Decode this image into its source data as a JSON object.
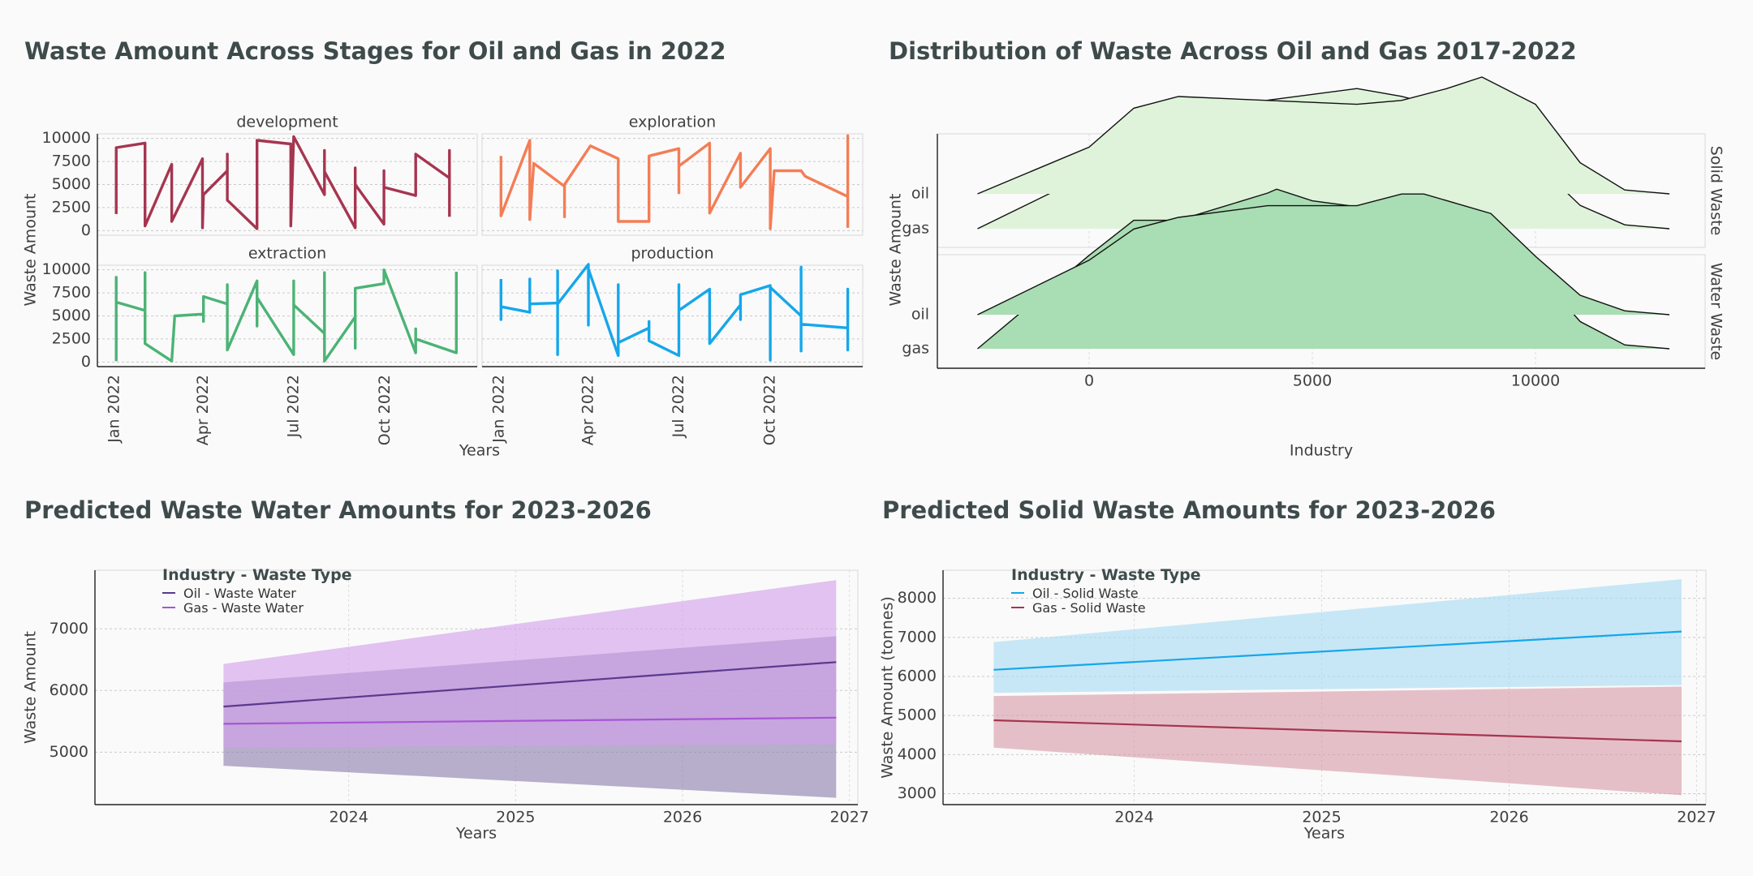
{
  "titles": {
    "p1": "Waste Amount Across Stages for Oil and Gas in 2022",
    "p2": "Distribution of Waste Across Oil and Gas 2017-2022",
    "p3": "Predicted Waste Water Amounts for 2023-2026",
    "p4": "Predicted Solid Waste Amounts for 2023-2026"
  },
  "colors": {
    "development": "#a63550",
    "exploration": "#f47d56",
    "extraction": "#4cb375",
    "production": "#15a7ea",
    "solid_fill": "#dff3da",
    "water_fill": "#a9ddb3",
    "oil_ww": "#5a3a8e",
    "gas_ww": "#a855d6",
    "oil_ww_band": "#8c80ad",
    "gas_ww_band": "#d2a0ea",
    "oil_sw": "#15a7ea",
    "gas_sw": "#a63550",
    "oil_sw_band": "#a8dcf4",
    "gas_sw_band": "#d99ba8"
  },
  "legend3": {
    "title": "Industry - Waste Type",
    "items": [
      "Oil - Waste Water",
      "Gas - Waste Water"
    ]
  },
  "legend4": {
    "title": "Industry - Waste Type",
    "items": [
      "Oil - Solid Waste",
      "Gas - Solid Waste"
    ]
  },
  "chart_data": [
    {
      "type": "line",
      "title": "Waste Amount Across Stages for Oil and Gas in 2022",
      "xlabel": "Years",
      "ylabel": "Waste Amount",
      "xticks": [
        "Jan 2022",
        "Apr 2022",
        "Jul 2022",
        "Oct 2022"
      ],
      "yticks": [
        0,
        2500,
        5000,
        7500,
        10000
      ],
      "xlim": [
        "2021-12-15",
        "2023-01-02"
      ],
      "ylim": [
        -500,
        10500
      ],
      "facets": [
        {
          "name": "development",
          "points": [
            [
              "2022-01-03",
              1800
            ],
            [
              "2022-01-03",
              9000
            ],
            [
              "2022-02-01",
              9500
            ],
            [
              "2022-02-01",
              500
            ],
            [
              "2022-02-28",
              7200
            ],
            [
              "2022-02-28",
              1000
            ],
            [
              "2022-03-31",
              7800
            ],
            [
              "2022-03-31",
              300
            ],
            [
              "2022-04-01",
              3900
            ],
            [
              "2022-04-25",
              6500
            ],
            [
              "2022-04-25",
              8300
            ],
            [
              "2022-04-25",
              3300
            ],
            [
              "2022-05-25",
              200
            ],
            [
              "2022-05-25",
              9800
            ],
            [
              "2022-06-28",
              9400
            ],
            [
              "2022-06-28",
              500
            ],
            [
              "2022-07-01",
              10200
            ],
            [
              "2022-08-01",
              3900
            ],
            [
              "2022-08-01",
              8700
            ],
            [
              "2022-08-01",
              6400
            ],
            [
              "2022-09-01",
              300
            ],
            [
              "2022-09-01",
              6800
            ],
            [
              "2022-09-01",
              5000
            ],
            [
              "2022-09-30",
              700
            ],
            [
              "2022-09-30",
              6500
            ],
            [
              "2022-09-30",
              4700
            ],
            [
              "2022-11-01",
              3800
            ],
            [
              "2022-11-01",
              8300
            ],
            [
              "2022-12-05",
              5700
            ],
            [
              "2022-12-05",
              8700
            ],
            [
              "2022-12-05",
              1500
            ]
          ]
        },
        {
          "name": "exploration",
          "points": [
            [
              "2022-01-03",
              8100
            ],
            [
              "2022-01-03",
              1600
            ],
            [
              "2022-02-01",
              9800
            ],
            [
              "2022-02-01",
              8500
            ],
            [
              "2022-02-01",
              2400
            ],
            [
              "2022-02-01",
              1200
            ],
            [
              "2022-02-05",
              7300
            ],
            [
              "2022-03-08",
              4800
            ],
            [
              "2022-03-08",
              1500
            ],
            [
              "2022-03-08",
              5000
            ],
            [
              "2022-04-03",
              9200
            ],
            [
              "2022-05-01",
              7800
            ],
            [
              "2022-05-01",
              1000
            ],
            [
              "2022-06-01",
              1000
            ],
            [
              "2022-06-01",
              8100
            ],
            [
              "2022-07-01",
              8900
            ],
            [
              "2022-07-01",
              4100
            ],
            [
              "2022-07-01",
              7000
            ],
            [
              "2022-08-01",
              9500
            ],
            [
              "2022-08-01",
              1900
            ],
            [
              "2022-09-01",
              8400
            ],
            [
              "2022-09-01",
              4700
            ],
            [
              "2022-10-01",
              8900
            ],
            [
              "2022-10-01",
              200
            ],
            [
              "2022-10-05",
              6500
            ],
            [
              "2022-11-01",
              6500
            ],
            [
              "2022-11-05",
              5900
            ],
            [
              "2022-12-18",
              3700
            ],
            [
              "2022-12-18",
              10300
            ],
            [
              "2022-12-18",
              300
            ]
          ]
        },
        {
          "name": "extraction",
          "points": [
            [
              "2022-01-03",
              100
            ],
            [
              "2022-01-03",
              9200
            ],
            [
              "2022-01-03",
              6500
            ],
            [
              "2022-02-01",
              5600
            ],
            [
              "2022-02-01",
              9700
            ],
            [
              "2022-02-01",
              2000
            ],
            [
              "2022-02-28",
              100
            ],
            [
              "2022-03-03",
              5000
            ],
            [
              "2022-04-01",
              5200
            ],
            [
              "2022-04-01",
              4400
            ],
            [
              "2022-04-01",
              7100
            ],
            [
              "2022-04-25",
              6300
            ],
            [
              "2022-04-25",
              8400
            ],
            [
              "2022-04-25",
              1300
            ],
            [
              "2022-05-25",
              8800
            ],
            [
              "2022-05-25",
              3900
            ],
            [
              "2022-05-25",
              7000
            ],
            [
              "2022-07-01",
              800
            ],
            [
              "2022-07-01",
              8800
            ],
            [
              "2022-07-01",
              6200
            ],
            [
              "2022-08-01",
              3100
            ],
            [
              "2022-08-01",
              9700
            ],
            [
              "2022-08-01",
              100
            ],
            [
              "2022-09-01",
              4900
            ],
            [
              "2022-09-01",
              1500
            ],
            [
              "2022-09-01",
              8000
            ],
            [
              "2022-09-30",
              8500
            ],
            [
              "2022-09-30",
              9500
            ],
            [
              "2022-09-30",
              10000
            ],
            [
              "2022-11-01",
              1000
            ],
            [
              "2022-11-01",
              3600
            ],
            [
              "2022-11-01",
              2500
            ],
            [
              "2022-12-12",
              1000
            ],
            [
              "2022-12-12",
              9800
            ]
          ]
        },
        {
          "name": "production",
          "points": [
            [
              "2022-01-03",
              9000
            ],
            [
              "2022-01-03",
              4600
            ],
            [
              "2022-01-03",
              6000
            ],
            [
              "2022-02-01",
              5400
            ],
            [
              "2022-02-01",
              9000
            ],
            [
              "2022-02-01",
              6300
            ],
            [
              "2022-03-01",
              6400
            ],
            [
              "2022-03-01",
              9900
            ],
            [
              "2022-03-01",
              800
            ],
            [
              "2022-03-01",
              6300
            ],
            [
              "2022-04-01",
              10600
            ],
            [
              "2022-04-01",
              4000
            ],
            [
              "2022-04-01",
              10100
            ],
            [
              "2022-05-01",
              700
            ],
            [
              "2022-05-01",
              8400
            ],
            [
              "2022-05-01",
              2100
            ],
            [
              "2022-06-01",
              3700
            ],
            [
              "2022-06-01",
              4400
            ],
            [
              "2022-06-01",
              2300
            ],
            [
              "2022-07-01",
              700
            ],
            [
              "2022-07-01",
              8400
            ],
            [
              "2022-07-01",
              5600
            ],
            [
              "2022-08-01",
              7900
            ],
            [
              "2022-08-01",
              4000
            ],
            [
              "2022-08-01",
              2000
            ],
            [
              "2022-09-01",
              6200
            ],
            [
              "2022-09-01",
              4600
            ],
            [
              "2022-09-01",
              7300
            ],
            [
              "2022-10-01",
              8300
            ],
            [
              "2022-10-01",
              200
            ],
            [
              "2022-10-01",
              8100
            ],
            [
              "2022-11-01",
              5000
            ],
            [
              "2022-11-01",
              10300
            ],
            [
              "2022-11-01",
              1200
            ],
            [
              "2022-11-01",
              4100
            ],
            [
              "2022-12-18",
              3700
            ],
            [
              "2022-12-18",
              1300
            ],
            [
              "2022-12-18",
              7900
            ],
            [
              "2022-12-18",
              6300
            ]
          ]
        }
      ]
    },
    {
      "type": "area",
      "title": "Distribution of Waste Across Oil and Gas 2017-2022",
      "xlabel": "Industry",
      "ylabel": "Waste Amount",
      "xticks": [
        0,
        5000,
        10000
      ],
      "xlim": [
        -3400,
        13800
      ],
      "facets": [
        {
          "name": "Solid Waste",
          "series": [
            {
              "name": "oil",
              "x": [
                -2500,
                0,
                1000,
                2000,
                4000,
                6000,
                7000,
                8000,
                8800,
                10000,
                11000,
                12000,
                13000
              ],
              "density": [
                0,
                0.12,
                0.22,
                0.25,
                0.24,
                0.23,
                0.24,
                0.27,
                0.3,
                0.23,
                0.08,
                0.01,
                0
              ]
            },
            {
              "name": "gas",
              "x": [
                -2500,
                0,
                1000,
                2000,
                4000,
                6000,
                7000,
                8000,
                9000,
                10000,
                11000,
                12000,
                13000
              ],
              "density": [
                0,
                0.14,
                0.28,
                0.31,
                0.33,
                0.36,
                0.34,
                0.31,
                0.28,
                0.17,
                0.06,
                0.01,
                0
              ]
            }
          ]
        },
        {
          "name": "Water Waste",
          "series": [
            {
              "name": "oil",
              "x": [
                -2500,
                0,
                1000,
                2000,
                4000,
                5000,
                6000,
                7000,
                7500,
                9000,
                10000,
                11000,
                12000,
                13000
              ],
              "density": [
                0,
                0.14,
                0.22,
                0.25,
                0.28,
                0.28,
                0.28,
                0.31,
                0.31,
                0.26,
                0.15,
                0.05,
                0.01,
                0
              ]
            },
            {
              "name": "gas",
              "x": [
                -2500,
                0,
                1000,
                2000,
                4000,
                4200,
                5000,
                7000,
                8000,
                9000,
                10000,
                11000,
                12000,
                13000
              ],
              "density": [
                0,
                0.24,
                0.33,
                0.33,
                0.4,
                0.41,
                0.38,
                0.35,
                0.34,
                0.29,
                0.2,
                0.07,
                0.01,
                0
              ]
            }
          ]
        }
      ]
    },
    {
      "type": "line",
      "title": "Predicted Waste Water Amounts for 2023-2026",
      "xlabel": "Years",
      "ylabel": "Waste Amount",
      "xticks": [
        2024,
        2025,
        2026,
        2027
      ],
      "yticks": [
        5000,
        6000,
        7000
      ],
      "xlim": [
        2022.48,
        2027.05
      ],
      "ylim": [
        4150,
        7950
      ],
      "series": [
        {
          "name": "Oil - Waste Water",
          "x": [
            2023.25,
            2026.92
          ],
          "y": [
            5740,
            6460
          ],
          "lower": [
            4780,
            4260
          ],
          "upper": [
            6130,
            6880
          ]
        },
        {
          "name": "Gas - Waste Water",
          "x": [
            2023.25,
            2026.92
          ],
          "y": [
            5460,
            5560
          ],
          "lower": [
            5070,
            5130
          ],
          "upper": [
            6430,
            7790
          ]
        }
      ]
    },
    {
      "type": "line",
      "title": "Predicted Solid Waste Amounts for 2023-2026",
      "xlabel": "Years",
      "ylabel": "Waste Amount (tonnes)",
      "xticks": [
        2024,
        2025,
        2026,
        2027
      ],
      "yticks": [
        3000,
        4000,
        5000,
        6000,
        7000,
        8000
      ],
      "xlim": [
        2022.98,
        2027.05
      ],
      "ylim": [
        2720,
        8720
      ],
      "series": [
        {
          "name": "Oil - Solid Waste",
          "x": [
            2023.25,
            2026.92
          ],
          "y": [
            6170,
            7150
          ],
          "lower": [
            5580,
            5780
          ],
          "upper": [
            6880,
            8490
          ]
        },
        {
          "name": "Gas - Solid Waste",
          "x": [
            2023.25,
            2026.92
          ],
          "y": [
            4880,
            4340
          ],
          "lower": [
            4180,
            2960
          ],
          "upper": [
            5500,
            5740
          ]
        }
      ]
    }
  ]
}
